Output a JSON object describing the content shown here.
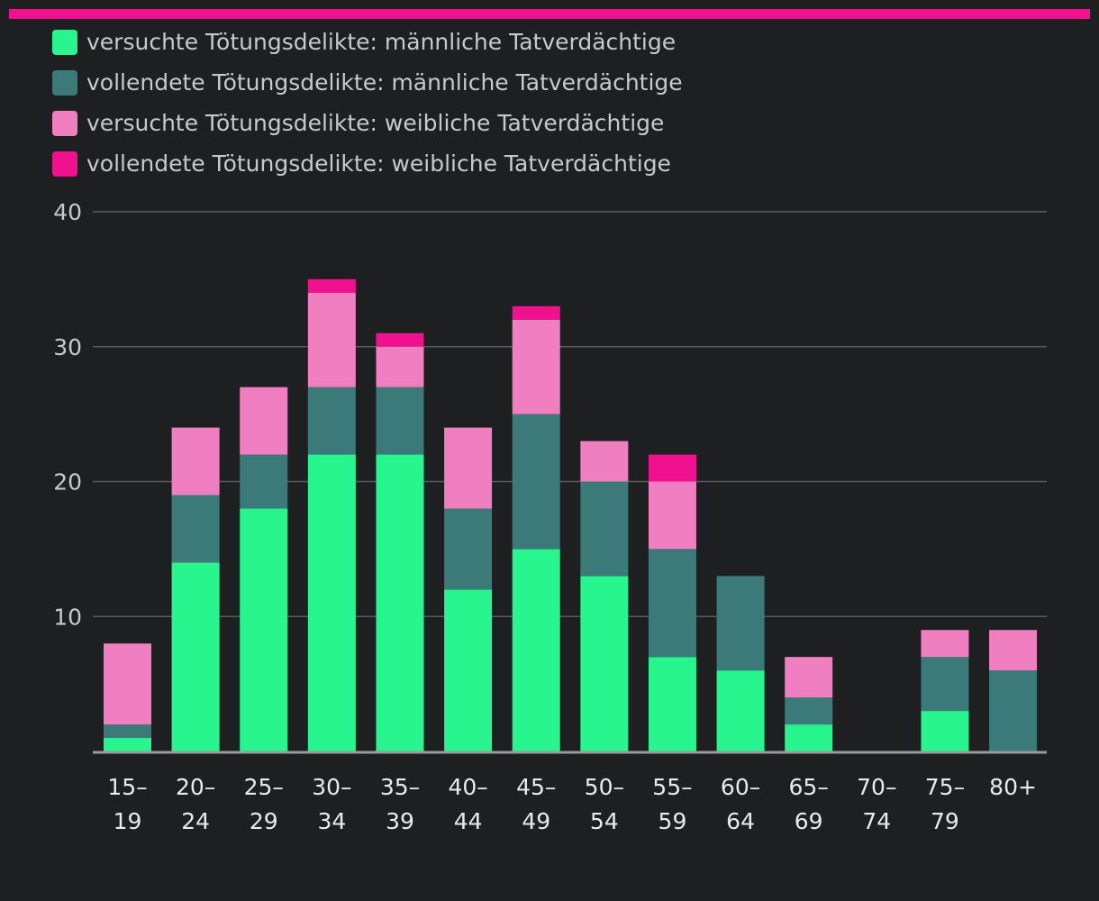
{
  "colors": {
    "accent": "#f0118e",
    "background": "#1e1f21",
    "grid": "#5a5b5e",
    "axis": "#9a9a9a"
  },
  "chart_data": {
    "type": "bar",
    "stacked": true,
    "title": "",
    "xlabel": "",
    "ylabel": "",
    "ylim": [
      0,
      40
    ],
    "yticks": [
      10,
      20,
      30,
      40
    ],
    "legend_position": "top-left",
    "categories": [
      [
        "15–",
        "19"
      ],
      [
        "20–",
        "24"
      ],
      [
        "25–",
        "29"
      ],
      [
        "30–",
        "34"
      ],
      [
        "35–",
        "39"
      ],
      [
        "40–",
        "44"
      ],
      [
        "45–",
        "49"
      ],
      [
        "50–",
        "54"
      ],
      [
        "55–",
        "59"
      ],
      [
        "60–",
        "64"
      ],
      [
        "65–",
        "69"
      ],
      [
        "70–",
        "74"
      ],
      [
        "75–",
        "79"
      ],
      [
        "80+",
        ""
      ]
    ],
    "series": [
      {
        "name": "versuchte Tötungsdelikte: männliche Tatverdächtige",
        "color": "#28f58e",
        "values": [
          1,
          14,
          18,
          22,
          22,
          12,
          15,
          13,
          7,
          6,
          2,
          0,
          3,
          0
        ]
      },
      {
        "name": "vollendete Tötungsdelikte: männliche Tatverdächtige",
        "color": "#3b7a78",
        "values": [
          1,
          5,
          4,
          5,
          5,
          6,
          10,
          7,
          8,
          7,
          2,
          0,
          4,
          6
        ]
      },
      {
        "name": "versuchte Tötungsdelikte: weibliche Tatverdächtige",
        "color": "#ef7fc0",
        "values": [
          6,
          5,
          5,
          7,
          3,
          6,
          7,
          3,
          5,
          0,
          3,
          0,
          2,
          3
        ]
      },
      {
        "name": "vollendete Tötungsdelikte: weibliche Tatverdächtige",
        "color": "#f0118e",
        "values": [
          0,
          0,
          0,
          1,
          1,
          0,
          1,
          0,
          2,
          0,
          0,
          0,
          0,
          0
        ]
      }
    ]
  }
}
